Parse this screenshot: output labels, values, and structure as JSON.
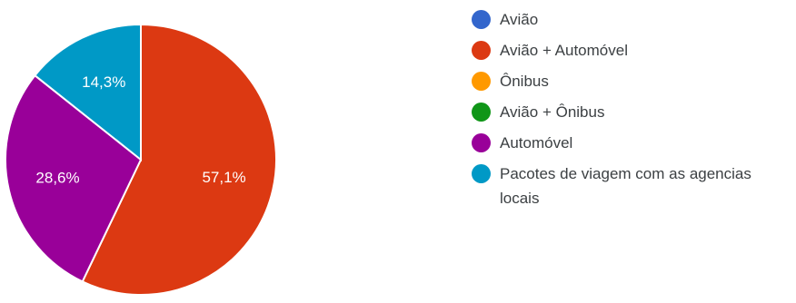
{
  "chart_data": {
    "type": "pie",
    "title": "",
    "legend_position": "right",
    "slices": [
      {
        "label": "Avião",
        "value": 0,
        "display": "",
        "color": "#3366cc"
      },
      {
        "label": "Avião + Automóvel",
        "value": 57.1,
        "display": "57,1%",
        "color": "#dc3912"
      },
      {
        "label": "Ônibus",
        "value": 0,
        "display": "",
        "color": "#ff9900"
      },
      {
        "label": "Avião + Ônibus",
        "value": 0,
        "display": "",
        "color": "#109618"
      },
      {
        "label": "Automóvel",
        "value": 28.6,
        "display": "28,6%",
        "color": "#990099"
      },
      {
        "label": "Pacotes de viagem com as agencias locais",
        "value": 14.3,
        "display": "14,3%",
        "color": "#0099c6"
      }
    ]
  }
}
